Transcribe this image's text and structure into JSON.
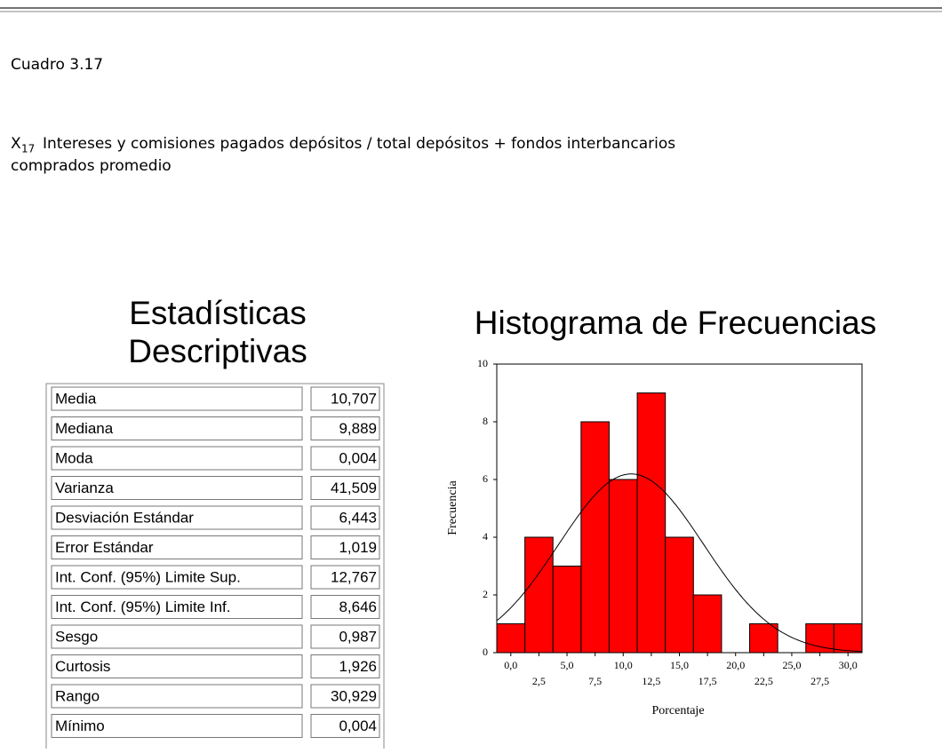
{
  "header": {
    "caption": "Cuadro 3.17",
    "variable": {
      "base": "X",
      "sub": "17"
    },
    "description_line1": "Intereses y comisiones pagados depósitos / total depósitos + fondos interbancarios",
    "description_line2": "comprados promedio"
  },
  "table": {
    "title_line1": "Estadísticas",
    "title_line2": "Descriptivas",
    "rows": [
      [
        "Media",
        "10,707"
      ],
      [
        "Mediana",
        "9,889"
      ],
      [
        "Moda",
        "0,004"
      ],
      [
        "Varianza",
        "41,509"
      ],
      [
        "Desviación Estándar",
        "6,443"
      ],
      [
        "Error Estándar",
        "1,019"
      ],
      [
        "Int. Conf. (95%) Limite Sup.",
        "12,767"
      ],
      [
        "Int. Conf. (95%) Limite Inf.",
        "8,646"
      ],
      [
        "Sesgo",
        "0,987"
      ],
      [
        "Curtosis",
        "1,926"
      ],
      [
        "Rango",
        "30,929"
      ],
      [
        "Mínimo",
        "0,004"
      ]
    ]
  },
  "chart_data": {
    "type": "histogram",
    "title": "Histograma de Frecuencias",
    "x_label": "Porcentaje",
    "y_label": "Frecuencia",
    "color": "#ff0000",
    "bins": [
      -1.25,
      1.25,
      3.75,
      6.25,
      8.75,
      11.25,
      13.75,
      16.25,
      18.75,
      21.25,
      23.75,
      26.25,
      28.75,
      31.25
    ],
    "values": [
      1,
      4,
      3,
      8,
      6,
      9,
      4,
      2,
      0,
      1,
      0,
      1,
      1
    ],
    "xlim": [
      -1.25,
      31.25
    ],
    "ylim": [
      0,
      10
    ],
    "yticks": [
      0,
      2,
      4,
      6,
      8,
      10
    ],
    "xticks": [
      {
        "value": 0,
        "label": "0,0"
      },
      {
        "value": 2.5,
        "label": "2,5"
      },
      {
        "value": 5,
        "label": "5,0"
      },
      {
        "value": 7.5,
        "label": "7,5"
      },
      {
        "value": 10,
        "label": "10,0"
      },
      {
        "value": 12.5,
        "label": "12,5"
      },
      {
        "value": 15,
        "label": "15,0"
      },
      {
        "value": 17.5,
        "label": "17,5"
      },
      {
        "value": 20,
        "label": "20,0"
      },
      {
        "value": 22.5,
        "label": "22,5"
      },
      {
        "value": 25,
        "label": "25,0"
      },
      {
        "value": 27.5,
        "label": "27,5"
      },
      {
        "value": 30,
        "label": "30,0"
      }
    ]
  }
}
